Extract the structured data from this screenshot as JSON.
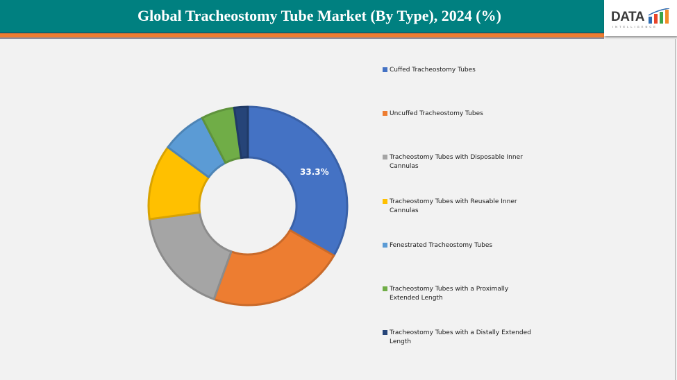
{
  "header": {
    "title": "Global Tracheostomy Tube Market (By Type), 2024 (%)",
    "logo_text": "DATA",
    "logo_subtext": "INTELLIGENCE"
  },
  "colors": {
    "header_bg": "#008080",
    "accent_bar": "#ed7d31",
    "background": "#f2f2f2"
  },
  "chart_data": {
    "type": "pie",
    "subtype": "doughnut",
    "title": "Global Tracheostomy Tube Market (By Type), 2024 (%)",
    "categories": [
      "Cuffed Tracheostomy Tubes",
      "Uncuffed Tracheostomy Tubes",
      "Tracheostomy Tubes with Disposable Inner Cannulas",
      "Tracheostomy Tubes with Reusable Inner Cannulas",
      "Fenestrated Tracheostomy Tubes",
      "Tracheostomy Tubes with a Proximally Extended Length",
      "Tracheostomy Tubes with a Distally Extended Length"
    ],
    "values": [
      33.3,
      22.2,
      17.3,
      12.2,
      7.3,
      5.4,
      2.2
    ],
    "colors": [
      "#4472c4",
      "#ed7d31",
      "#a5a5a5",
      "#ffc000",
      "#5b9bd5",
      "#70ad47",
      "#264478"
    ],
    "data_labels": [
      {
        "index": 0,
        "text": "33.3%"
      }
    ],
    "legend_position": "right",
    "grid": false
  },
  "legend": {
    "items": [
      {
        "label": "Cuffed Tracheostomy Tubes",
        "color": "#4472c4"
      },
      {
        "label": "Uncuffed Tracheostomy Tubes",
        "color": "#ed7d31"
      },
      {
        "label": "Tracheostomy Tubes with Disposable Inner Cannulas",
        "color": "#a5a5a5"
      },
      {
        "label": "Tracheostomy Tubes with Reusable Inner Cannulas",
        "color": "#ffc000"
      },
      {
        "label": "Fenestrated Tracheostomy Tubes",
        "color": "#5b9bd5"
      },
      {
        "label": "Tracheostomy Tubes with a Proximally Extended Length",
        "color": "#70ad47"
      },
      {
        "label": "Tracheostomy Tubes with a Distally Extended Length",
        "color": "#264478"
      }
    ]
  }
}
